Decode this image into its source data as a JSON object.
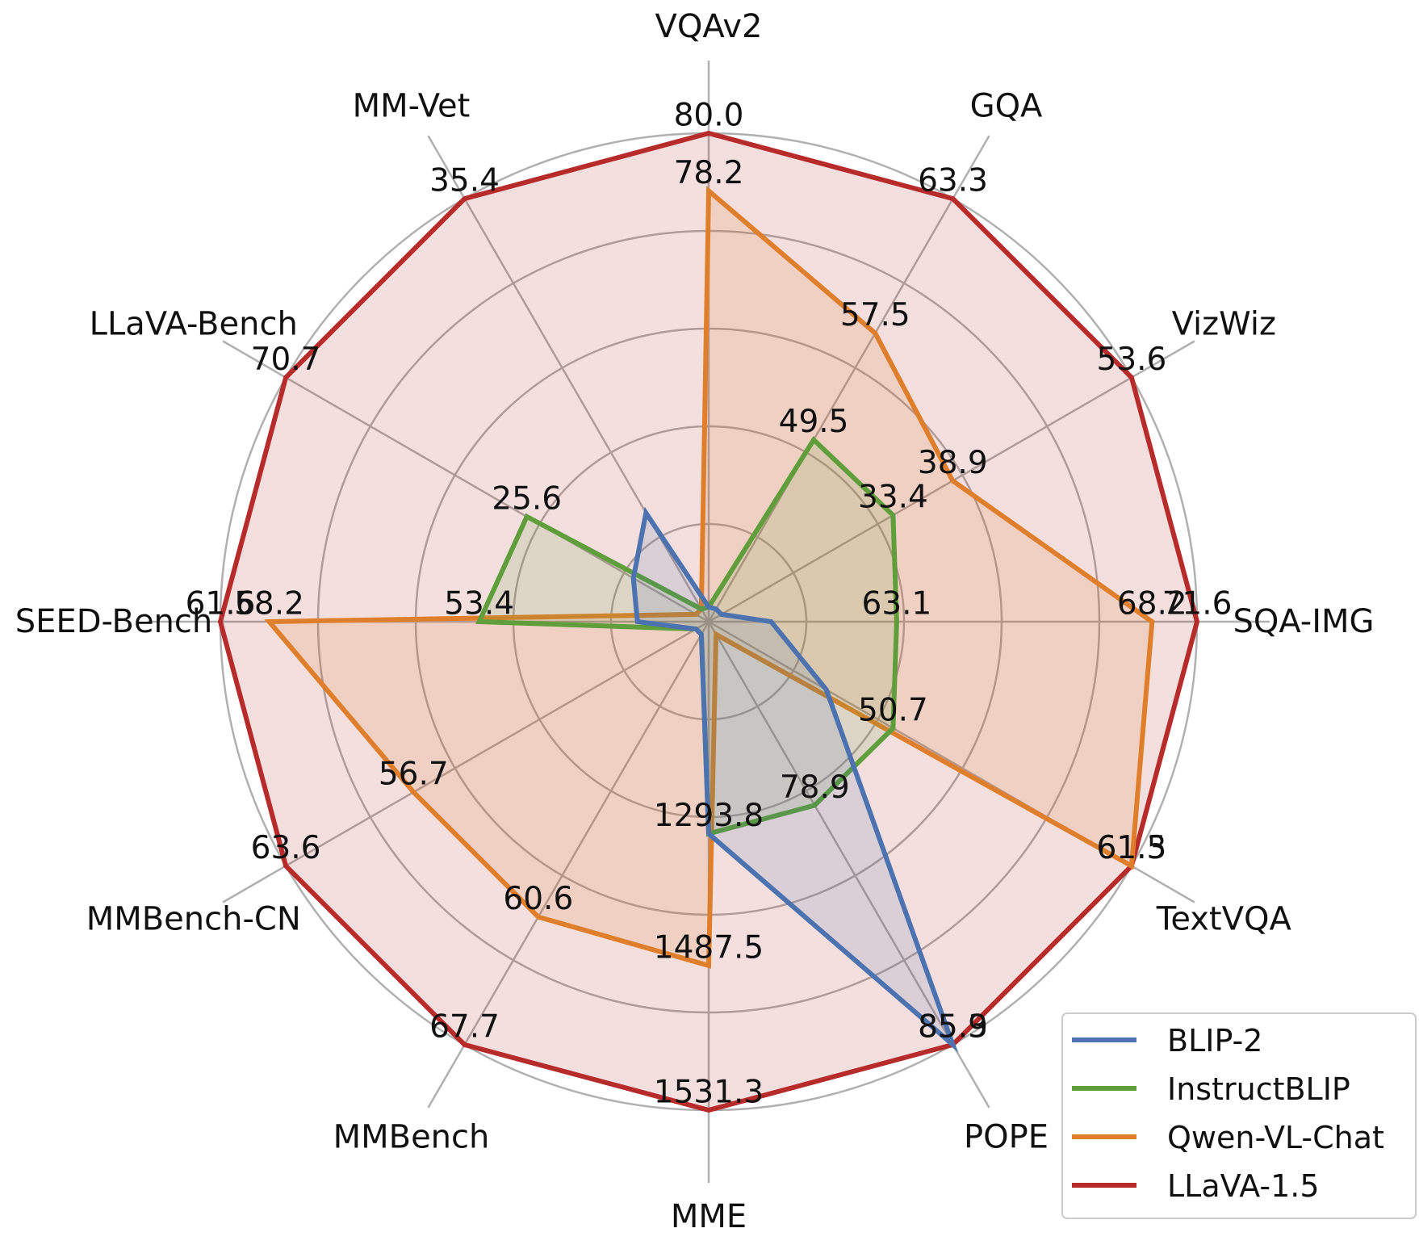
{
  "chart_data": {
    "type": "radar",
    "axes": [
      "VQAv2",
      "GQA",
      "VizWiz",
      "SQA-IMG",
      "TextVQA",
      "POPE",
      "MME",
      "MMBench",
      "MMBench-CN",
      "SEED-Bench",
      "LLaVA-Bench",
      "MM-Vet"
    ],
    "legend_position": "bottom-right",
    "grid": true,
    "series": [
      {
        "name": "BLIP-2",
        "color": "#4c72b0",
        "relative": [
          0.03,
          0.03,
          0.03,
          0.128,
          0.278,
          1.0,
          0.434,
          0.03,
          0.03,
          0.146,
          0.178,
          0.257
        ],
        "labels": [
          "",
          "",
          "",
          "",
          "",
          "85.3",
          "1293.8",
          "",
          "",
          "",
          "",
          ""
        ]
      },
      {
        "name": "InstructBLIP",
        "color": "#5f9e3a",
        "relative": [
          0.03,
          0.43,
          0.436,
          0.385,
          0.436,
          0.434,
          0.434,
          0.03,
          0.03,
          0.47,
          0.43,
          0.03
        ],
        "labels": [
          "",
          "49.5",
          "33.4",
          "63.1",
          "50.7",
          "78.9",
          "",
          "",
          "",
          "53.4",
          "25.6",
          ""
        ]
      },
      {
        "name": "Qwen-VL-Chat",
        "color": "#e07f2b",
        "relative": [
          0.882,
          0.682,
          0.577,
          0.908,
          1.0,
          0.03,
          0.704,
          0.698,
          0.698,
          0.9,
          0.03,
          0.03
        ],
        "labels": [
          "78.2",
          "57.5",
          "38.9",
          "68.2",
          "61.5",
          "",
          "1487.5",
          "60.6",
          "56.7",
          "58.2",
          "",
          ""
        ]
      },
      {
        "name": "LLaVA-1.5",
        "color": "#b72b2b",
        "relative": [
          1.0,
          1.0,
          1.0,
          1.0,
          1.0,
          1.0,
          1.0,
          1.0,
          1.0,
          1.0,
          1.0,
          1.0
        ],
        "labels": [
          "80.0",
          "63.3",
          "53.6",
          "71.6",
          "61.3",
          "85.9",
          "1531.3",
          "67.7",
          "63.6",
          "61.6",
          "70.7",
          "35.4"
        ]
      }
    ]
  }
}
